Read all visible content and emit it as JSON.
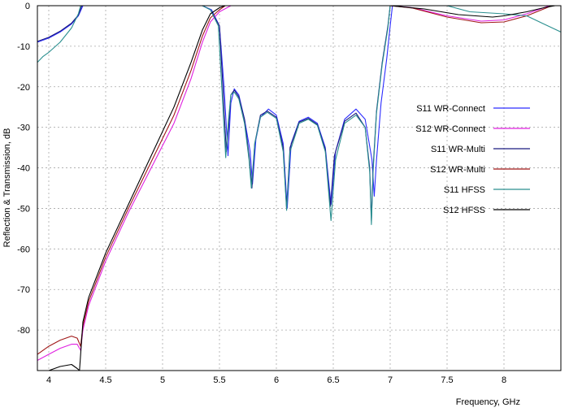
{
  "chart_data": {
    "type": "line",
    "title": "",
    "xlabel": "Frequency, GHz",
    "ylabel": "Reflection & Transmission, dB",
    "xlim": [
      3.9,
      8.5
    ],
    "ylim": [
      -90,
      0
    ],
    "xticks": [
      4,
      4.5,
      5,
      5.5,
      6,
      6.5,
      7,
      7.5,
      8
    ],
    "yticks": [
      0,
      -10,
      -20,
      -30,
      -40,
      -50,
      -60,
      -70,
      -80
    ],
    "grid": true,
    "legend_position": "right",
    "series": [
      {
        "name": "S11 WR-Connect",
        "color": "#2c2cff",
        "points": [
          [
            3.9,
            -9.0
          ],
          [
            4.0,
            -8.0
          ],
          [
            4.1,
            -6.5
          ],
          [
            4.2,
            -4.5
          ],
          [
            4.26,
            -2.5
          ],
          [
            4.3,
            0
          ],
          [
            5.35,
            0
          ],
          [
            5.43,
            -1
          ],
          [
            5.5,
            -5
          ],
          [
            5.54,
            -20
          ],
          [
            5.575,
            -37
          ],
          [
            5.6,
            -24
          ],
          [
            5.63,
            -20.5
          ],
          [
            5.67,
            -22
          ],
          [
            5.72,
            -28
          ],
          [
            5.77,
            -36
          ],
          [
            5.79,
            -44
          ],
          [
            5.82,
            -33
          ],
          [
            5.86,
            -27.5
          ],
          [
            5.93,
            -25.5
          ],
          [
            6.0,
            -27
          ],
          [
            6.06,
            -34
          ],
          [
            6.095,
            -50
          ],
          [
            6.13,
            -34
          ],
          [
            6.2,
            -28.5
          ],
          [
            6.28,
            -27.5
          ],
          [
            6.36,
            -29
          ],
          [
            6.43,
            -35
          ],
          [
            6.48,
            -49
          ],
          [
            6.52,
            -36
          ],
          [
            6.6,
            -28
          ],
          [
            6.7,
            -25.5
          ],
          [
            6.78,
            -28
          ],
          [
            6.84,
            -38
          ],
          [
            6.86,
            -47
          ],
          [
            6.88,
            -38
          ],
          [
            6.92,
            -24
          ],
          [
            6.97,
            -13
          ],
          [
            7.0,
            -5
          ],
          [
            7.02,
            0
          ],
          [
            8.5,
            0
          ]
        ]
      },
      {
        "name": "S12 WR-Connect",
        "color": "#e020e0",
        "points": [
          [
            3.9,
            -87.5
          ],
          [
            4.0,
            -86
          ],
          [
            4.1,
            -84.5
          ],
          [
            4.2,
            -83.5
          ],
          [
            4.25,
            -83.5
          ],
          [
            4.28,
            -85
          ],
          [
            4.3,
            -80
          ],
          [
            4.35,
            -74
          ],
          [
            4.5,
            -63
          ],
          [
            4.7,
            -51
          ],
          [
            4.9,
            -40
          ],
          [
            5.1,
            -29
          ],
          [
            5.25,
            -18
          ],
          [
            5.35,
            -9
          ],
          [
            5.42,
            -4
          ],
          [
            5.5,
            -1.5
          ],
          [
            5.6,
            0
          ],
          [
            7.0,
            0
          ],
          [
            7.2,
            -0.5
          ],
          [
            7.5,
            -2.5
          ],
          [
            7.8,
            -3.8
          ],
          [
            8.0,
            -3.5
          ],
          [
            8.2,
            -2
          ],
          [
            8.35,
            -0.5
          ],
          [
            8.4,
            0
          ]
        ]
      },
      {
        "name": "S11 WR-Multi",
        "color": "#1a1a80",
        "points": [
          [
            3.9,
            -8.8
          ],
          [
            4.0,
            -7.8
          ],
          [
            4.1,
            -6.3
          ],
          [
            4.2,
            -4.3
          ],
          [
            4.26,
            -2.3
          ],
          [
            4.29,
            0
          ],
          [
            5.35,
            0
          ],
          [
            5.42,
            -1
          ],
          [
            5.5,
            -5
          ],
          [
            5.53,
            -20
          ],
          [
            5.56,
            -36
          ],
          [
            5.58,
            -30
          ],
          [
            5.6,
            -22
          ],
          [
            5.63,
            -20.8
          ],
          [
            5.67,
            -22.5
          ],
          [
            5.72,
            -28
          ],
          [
            5.76,
            -37
          ],
          [
            5.785,
            -45
          ],
          [
            5.81,
            -34
          ],
          [
            5.86,
            -27
          ],
          [
            5.92,
            -26
          ],
          [
            6.0,
            -27.5
          ],
          [
            6.06,
            -35
          ],
          [
            6.09,
            -50
          ],
          [
            6.12,
            -35
          ],
          [
            6.2,
            -28.7
          ],
          [
            6.28,
            -27.8
          ],
          [
            6.36,
            -29.3
          ],
          [
            6.43,
            -35.5
          ],
          [
            6.475,
            -49.5
          ],
          [
            6.51,
            -37
          ],
          [
            6.6,
            -28.5
          ],
          [
            6.7,
            -26.5
          ],
          [
            6.78,
            -30
          ],
          [
            6.82,
            -40
          ],
          [
            6.835,
            -53
          ],
          [
            6.85,
            -40
          ],
          [
            6.88,
            -26
          ],
          [
            6.93,
            -14
          ],
          [
            6.98,
            -5
          ],
          [
            7.0,
            0
          ],
          [
            8.5,
            0
          ]
        ]
      },
      {
        "name": "S12 WR-Multi",
        "color": "#a01818",
        "points": [
          [
            3.9,
            -86
          ],
          [
            4.0,
            -84
          ],
          [
            4.1,
            -82.5
          ],
          [
            4.2,
            -81.5
          ],
          [
            4.25,
            -82
          ],
          [
            4.28,
            -84
          ],
          [
            4.3,
            -79
          ],
          [
            4.35,
            -73
          ],
          [
            4.5,
            -62
          ],
          [
            4.7,
            -50
          ],
          [
            4.9,
            -38.5
          ],
          [
            5.1,
            -27
          ],
          [
            5.25,
            -16
          ],
          [
            5.35,
            -7.5
          ],
          [
            5.42,
            -3
          ],
          [
            5.5,
            -1
          ],
          [
            5.55,
            0
          ],
          [
            7.0,
            0
          ],
          [
            7.2,
            -0.6
          ],
          [
            7.5,
            -2.8
          ],
          [
            7.8,
            -4.2
          ],
          [
            8.0,
            -4
          ],
          [
            8.2,
            -2.5
          ],
          [
            8.35,
            -0.8
          ],
          [
            8.42,
            0
          ]
        ]
      },
      {
        "name": "S11 HFSS",
        "color": "#2a8f8f",
        "points": [
          [
            3.9,
            -14
          ],
          [
            3.95,
            -12.5
          ],
          [
            4.0,
            -11.5
          ],
          [
            4.1,
            -9
          ],
          [
            4.2,
            -5.5
          ],
          [
            4.26,
            -2
          ],
          [
            4.28,
            0
          ],
          [
            5.35,
            0
          ],
          [
            5.42,
            -1
          ],
          [
            5.49,
            -5
          ],
          [
            5.52,
            -20
          ],
          [
            5.555,
            -37.5
          ],
          [
            5.58,
            -28
          ],
          [
            5.6,
            -22
          ],
          [
            5.63,
            -21.3
          ],
          [
            5.67,
            -23
          ],
          [
            5.72,
            -29
          ],
          [
            5.76,
            -38
          ],
          [
            5.78,
            -45
          ],
          [
            5.81,
            -34
          ],
          [
            5.86,
            -27.5
          ],
          [
            5.92,
            -26.3
          ],
          [
            6.0,
            -27.8
          ],
          [
            6.06,
            -36
          ],
          [
            6.09,
            -50.5
          ],
          [
            6.12,
            -36
          ],
          [
            6.2,
            -29
          ],
          [
            6.28,
            -28
          ],
          [
            6.36,
            -29.5
          ],
          [
            6.43,
            -36
          ],
          [
            6.48,
            -53
          ],
          [
            6.52,
            -38
          ],
          [
            6.6,
            -29
          ],
          [
            6.7,
            -27
          ],
          [
            6.78,
            -30
          ],
          [
            6.82,
            -41
          ],
          [
            6.835,
            -54
          ],
          [
            6.85,
            -41
          ],
          [
            6.88,
            -26.5
          ],
          [
            6.93,
            -14.5
          ],
          [
            6.98,
            -5.5
          ],
          [
            7.0,
            0
          ],
          [
            7.5,
            0
          ],
          [
            7.7,
            -1.5
          ],
          [
            8.0,
            -2
          ],
          [
            8.2,
            -2.5
          ],
          [
            8.35,
            -4.5
          ],
          [
            8.5,
            -6.5
          ]
        ]
      },
      {
        "name": "S12 HFSS",
        "color": "#000000",
        "points": [
          [
            3.9,
            -92
          ],
          [
            4.0,
            -90
          ],
          [
            4.1,
            -89
          ],
          [
            4.2,
            -88.5
          ],
          [
            4.25,
            -89.5
          ],
          [
            4.27,
            -90
          ],
          [
            4.3,
            -78
          ],
          [
            4.35,
            -72
          ],
          [
            4.5,
            -61
          ],
          [
            4.7,
            -49
          ],
          [
            4.9,
            -37
          ],
          [
            5.1,
            -25
          ],
          [
            5.25,
            -14
          ],
          [
            5.35,
            -6
          ],
          [
            5.42,
            -2
          ],
          [
            5.5,
            -0.5
          ],
          [
            5.55,
            0
          ],
          [
            7.0,
            0
          ],
          [
            7.3,
            -0.8
          ],
          [
            7.6,
            -2.2
          ],
          [
            7.75,
            -2.5
          ],
          [
            7.9,
            -2.8
          ],
          [
            8.0,
            -2.5
          ],
          [
            8.2,
            -1.5
          ],
          [
            8.35,
            -0.5
          ],
          [
            8.45,
            0
          ]
        ]
      }
    ]
  }
}
